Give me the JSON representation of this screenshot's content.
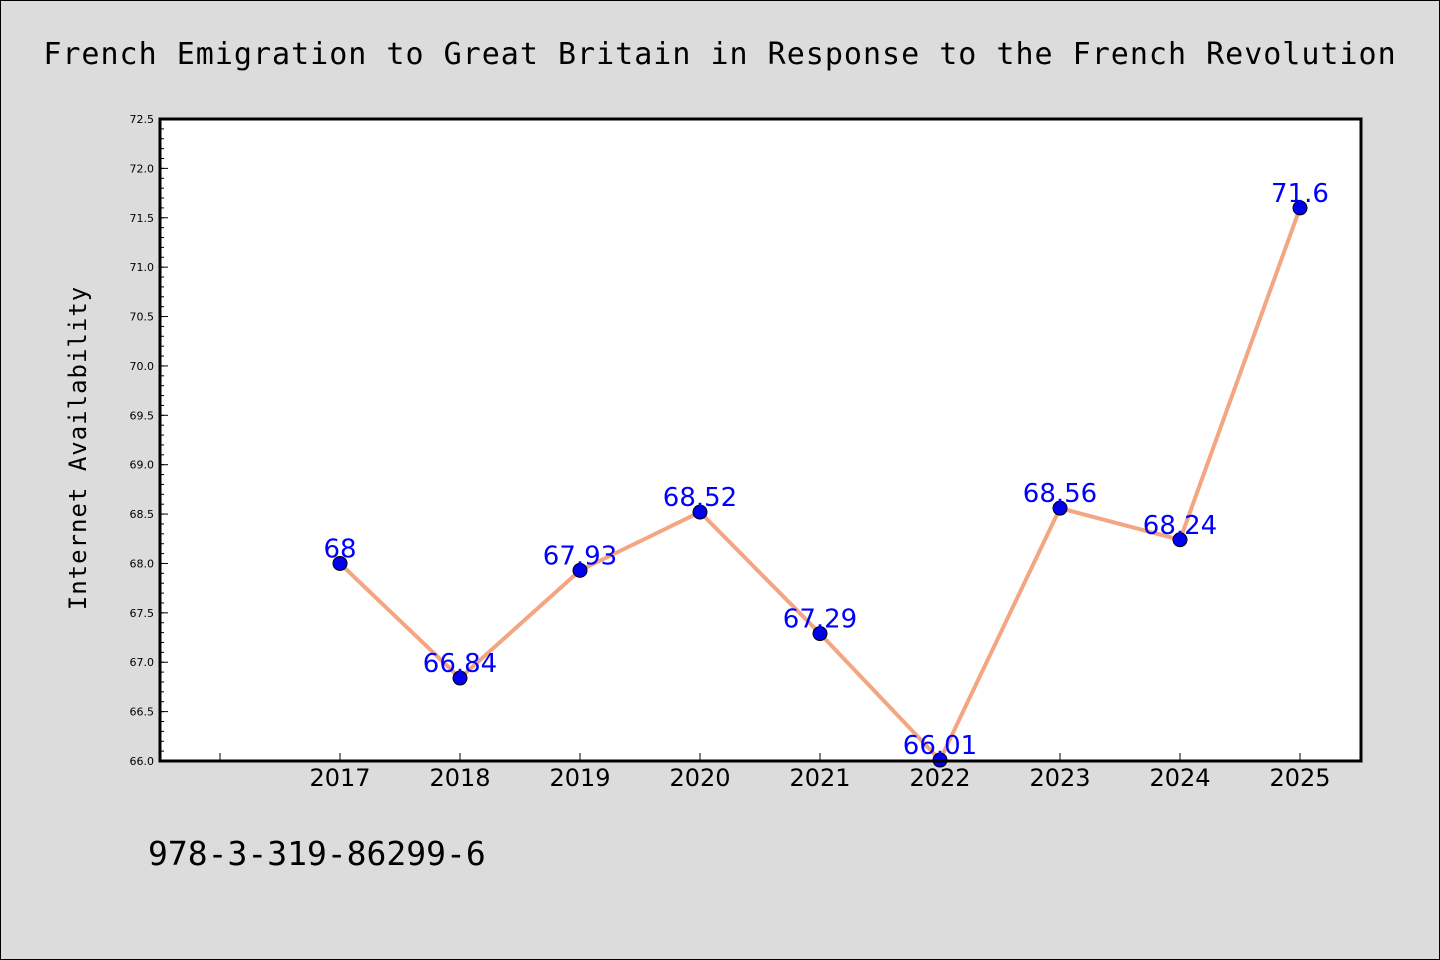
{
  "chart_data": {
    "type": "line",
    "title": "French Emigration to Great Britain in Response to the French Revolution",
    "xlabel": "",
    "ylabel": "Internet Availability",
    "categories": [
      "2017",
      "2018",
      "2019",
      "2020",
      "2021",
      "2022",
      "2023",
      "2024",
      "2025"
    ],
    "values": [
      68,
      66.84,
      67.93,
      68.52,
      67.29,
      66.01,
      68.56,
      68.24,
      71.6
    ],
    "data_labels": [
      "68",
      "66.84",
      "67.93",
      "68.52",
      "67.29",
      "66.01",
      "68.56",
      "68.24",
      "71.6"
    ],
    "ylim": [
      66.0,
      72.5
    ],
    "yticks": [
      "66.0",
      "66.5",
      "67.0",
      "67.5",
      "68.0",
      "68.5",
      "69.0",
      "69.5",
      "70.0",
      "70.5",
      "71.0",
      "71.5",
      "72.0",
      "72.5"
    ],
    "grid": false,
    "legend": "none",
    "colors": {
      "line": "#f4a582",
      "marker": "#0000ee",
      "label": "#0000ff",
      "background": "#dcdcdc",
      "plot_background": "#ffffff"
    }
  },
  "footer_text": "978-3-319-86299-6"
}
